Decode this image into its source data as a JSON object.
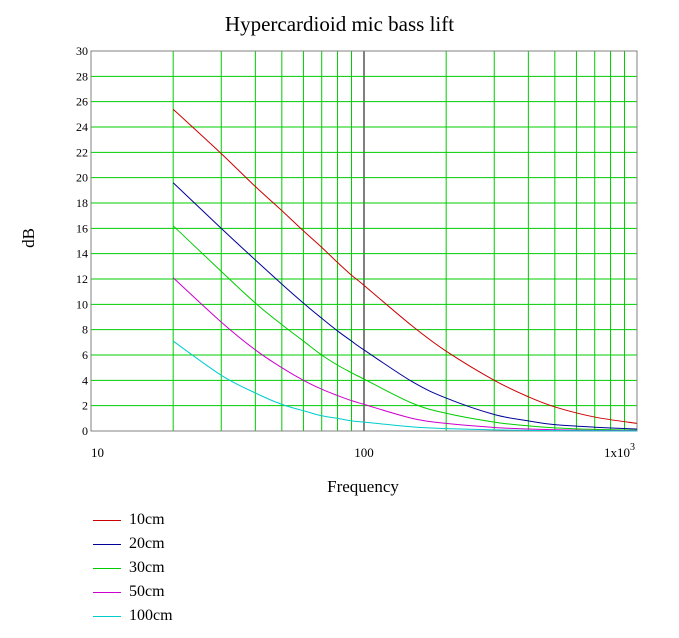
{
  "chart_data": {
    "type": "line",
    "title": "Hypercardioid mic bass lift",
    "xlabel": "Frequency",
    "ylabel": "dB",
    "x_scale": "log",
    "xlim": [
      10,
      1000
    ],
    "ylim": [
      0,
      30
    ],
    "grid": true,
    "legend_position": "bottom-left",
    "x_tick_labels": [
      "10",
      "100",
      "1x10"
    ],
    "x_tick_exponent": "3",
    "y_ticks": [
      0,
      2,
      4,
      6,
      8,
      10,
      12,
      14,
      16,
      18,
      20,
      22,
      24,
      26,
      28,
      30
    ],
    "grid_color": "#00cc00",
    "series": [
      {
        "name": "10cm",
        "color": "#cc0000",
        "x": [
          20,
          30,
          40,
          50,
          60,
          70,
          80,
          90,
          100,
          150,
          200,
          300,
          400,
          500,
          700,
          1000
        ],
        "y": [
          25.4,
          21.9,
          19.3,
          17.4,
          15.8,
          14.5,
          13.3,
          12.3,
          11.5,
          8.3,
          6.3,
          4.0,
          2.7,
          1.9,
          1.1,
          0.6
        ]
      },
      {
        "name": "20cm",
        "color": "#000099",
        "x": [
          20,
          30,
          40,
          50,
          60,
          70,
          80,
          90,
          100,
          150,
          200,
          300,
          400,
          500,
          700,
          1000
        ],
        "y": [
          19.6,
          16.0,
          13.5,
          11.6,
          10.1,
          8.9,
          7.9,
          7.1,
          6.4,
          3.9,
          2.6,
          1.3,
          0.8,
          0.5,
          0.3,
          0.15
        ]
      },
      {
        "name": "30cm",
        "color": "#00cc00",
        "x": [
          20,
          30,
          40,
          50,
          60,
          70,
          80,
          90,
          100,
          150,
          200,
          300,
          400,
          500,
          700,
          1000
        ],
        "y": [
          16.2,
          12.6,
          10.1,
          8.4,
          7.1,
          6.0,
          5.2,
          4.6,
          4.1,
          2.2,
          1.4,
          0.7,
          0.4,
          0.25,
          0.13,
          0.07
        ]
      },
      {
        "name": "50cm",
        "color": "#cc00cc",
        "x": [
          20,
          30,
          40,
          50,
          60,
          70,
          80,
          90,
          100,
          150,
          200,
          300,
          400,
          500,
          700,
          1000
        ],
        "y": [
          12.1,
          8.6,
          6.4,
          5.0,
          4.0,
          3.3,
          2.8,
          2.4,
          2.1,
          1.0,
          0.6,
          0.28,
          0.16,
          0.1,
          0.05,
          0.03
        ]
      },
      {
        "name": "100cm",
        "color": "#00cccc",
        "x": [
          20,
          30,
          40,
          50,
          60,
          70,
          80,
          90,
          100,
          150,
          200,
          300,
          400,
          500,
          700,
          1000
        ],
        "y": [
          7.1,
          4.4,
          3.0,
          2.1,
          1.6,
          1.2,
          1.0,
          0.8,
          0.7,
          0.33,
          0.19,
          0.09,
          0.05,
          0.03,
          0.015,
          0.008
        ]
      }
    ]
  }
}
